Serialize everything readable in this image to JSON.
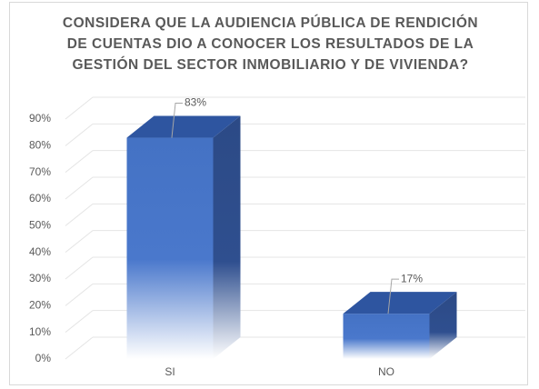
{
  "chart_data": {
    "type": "bar3d",
    "title": "CONSIDERA QUE LA AUDIENCIA PÚBLICA DE RENDICIÓN DE CUENTAS DIO A CONOCER LOS RESULTADOS DE LA GESTIÓN DEL SECTOR INMOBILIARIO Y DE VIVIENDA?",
    "categories": [
      "SI",
      "NO"
    ],
    "values": [
      83,
      17
    ],
    "value_labels": [
      "83%",
      "17%"
    ],
    "color": "#4472c4",
    "ylim": [
      0,
      90
    ],
    "yticks": [
      {
        "value": 0,
        "label": "0%"
      },
      {
        "value": 10,
        "label": "10%"
      },
      {
        "value": 20,
        "label": "20%"
      },
      {
        "value": 30,
        "label": "30%"
      },
      {
        "value": 40,
        "label": "40%"
      },
      {
        "value": 50,
        "label": "50%"
      },
      {
        "value": 60,
        "label": "60%"
      },
      {
        "value": 70,
        "label": "70%"
      },
      {
        "value": 80,
        "label": "80%"
      },
      {
        "value": 90,
        "label": "90%"
      }
    ],
    "grid": true
  }
}
